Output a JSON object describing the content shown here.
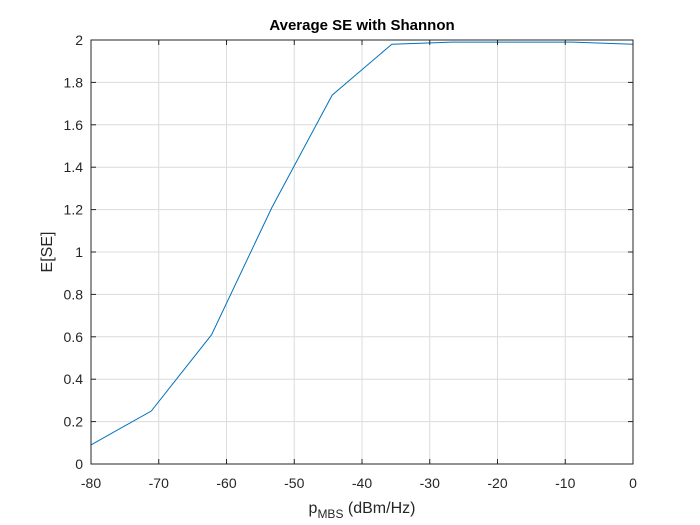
{
  "chart_data": {
    "type": "line",
    "title": "Average SE with Shannon",
    "xlabel": "p",
    "xlabel_sub": "MBS",
    "xlabel_suffix": " (dBm/Hz)",
    "ylabel": "E[SE]",
    "xlim": [
      -80,
      0
    ],
    "ylim": [
      0,
      2
    ],
    "xticks": [
      -80,
      -70,
      -60,
      -50,
      -40,
      -30,
      -20,
      -10,
      0
    ],
    "yticks": [
      0,
      0.2,
      0.4,
      0.6,
      0.8,
      1,
      1.2,
      1.4,
      1.6,
      1.8,
      2
    ],
    "grid": true,
    "series": [
      {
        "color": "#0072bd",
        "x": [
          -80,
          -71.1,
          -62.2,
          -53.3,
          -44.4,
          -35.6,
          -26.7,
          -17.8,
          -8.9,
          0
        ],
        "y": [
          0.09,
          0.25,
          0.61,
          1.21,
          1.74,
          1.98,
          1.99,
          1.99,
          1.99,
          1.98
        ]
      }
    ]
  }
}
